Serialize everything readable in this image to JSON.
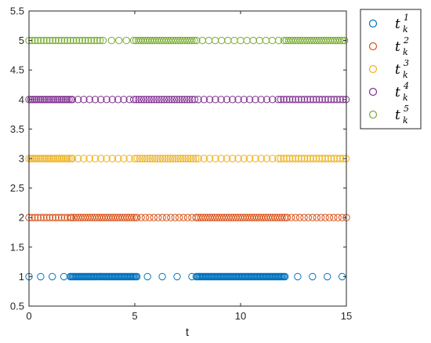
{
  "chart_data": {
    "type": "scatter",
    "xlabel": "t",
    "ylabel": "",
    "xlim": [
      0,
      15
    ],
    "ylim": [
      0.5,
      5.5
    ],
    "x_ticks": [
      0,
      5,
      10,
      15
    ],
    "y_ticks": [
      0.5,
      1,
      1.5,
      2,
      2.5,
      3,
      3.5,
      4,
      4.5,
      5,
      5.5
    ],
    "x_tick_labels": [
      "0",
      "5",
      "10",
      "15"
    ],
    "y_tick_labels": [
      "0.5",
      "1",
      "1.5",
      "2",
      "2.5",
      "3",
      "3.5",
      "4",
      "4.5",
      "5",
      "5.5"
    ],
    "legend_position": "outside-top-right",
    "marker": "open-circle",
    "series": [
      {
        "name": "t_k^1",
        "label_base": "t",
        "label_sub": "k",
        "label_sup": "1",
        "color": "#0072BD",
        "y": 1,
        "segments": [
          {
            "from": 0,
            "to": 2.0,
            "step": 0.55
          },
          {
            "from": 1.95,
            "to": 5.1,
            "step": 0.05
          },
          {
            "from": 5.6,
            "to": 7.8,
            "step": 0.7
          },
          {
            "from": 7.9,
            "to": 12.1,
            "step": 0.05
          },
          {
            "from": 12.7,
            "to": 15.0,
            "step": 0.7
          }
        ]
      },
      {
        "name": "t_k^2",
        "label_base": "t",
        "label_sub": "k",
        "label_sup": "2",
        "color": "#D95319",
        "y": 2,
        "segments": [
          {
            "from": 0,
            "to": 2.0,
            "step": 0.14
          },
          {
            "from": 2.0,
            "to": 5.1,
            "step": 0.11
          },
          {
            "from": 5.1,
            "to": 7.9,
            "step": 0.2
          },
          {
            "from": 7.9,
            "to": 12.2,
            "step": 0.11
          },
          {
            "from": 12.2,
            "to": 15.0,
            "step": 0.2
          }
        ]
      },
      {
        "name": "t_k^3",
        "label_base": "t",
        "label_sub": "k",
        "label_sup": "3",
        "color": "#EDB120",
        "y": 3,
        "segments": [
          {
            "from": 0,
            "to": 2.0,
            "step": 0.09
          },
          {
            "from": 2.05,
            "to": 5.0,
            "step": 0.27
          },
          {
            "from": 5.0,
            "to": 7.9,
            "step": 0.12
          },
          {
            "from": 8.0,
            "to": 11.9,
            "step": 0.27
          },
          {
            "from": 11.9,
            "to": 15.0,
            "step": 0.14
          }
        ]
      },
      {
        "name": "t_k^4",
        "label_base": "t",
        "label_sub": "k",
        "label_sup": "4",
        "color": "#7E2F8E",
        "y": 4,
        "segments": [
          {
            "from": 0,
            "to": 2.0,
            "step": 0.09
          },
          {
            "from": 2.05,
            "to": 4.8,
            "step": 0.27
          },
          {
            "from": 4.95,
            "to": 7.9,
            "step": 0.12
          },
          {
            "from": 8.0,
            "to": 11.9,
            "step": 0.27
          },
          {
            "from": 11.9,
            "to": 15.0,
            "step": 0.14
          }
        ]
      },
      {
        "name": "t_k^5",
        "label_base": "t",
        "label_sub": "k",
        "label_sup": "5",
        "color": "#77AC30",
        "y": 5,
        "segments": [
          {
            "from": 0,
            "to": 3.6,
            "step": 0.14
          },
          {
            "from": 3.9,
            "to": 4.9,
            "step": 0.35
          },
          {
            "from": 4.95,
            "to": 8.0,
            "step": 0.11
          },
          {
            "from": 8.2,
            "to": 11.9,
            "step": 0.3
          },
          {
            "from": 12.05,
            "to": 15.0,
            "step": 0.11
          }
        ]
      }
    ]
  }
}
